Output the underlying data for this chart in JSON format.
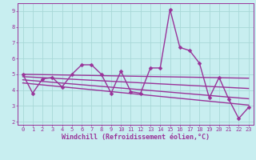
{
  "title": "",
  "xlabel": "Windchill (Refroidissement éolien,°C)",
  "ylabel": "",
  "bg_color": "#c8eef0",
  "grid_color": "#a8d8d8",
  "line_color": "#993399",
  "xlim": [
    -0.5,
    23.5
  ],
  "ylim": [
    1.8,
    9.5
  ],
  "yticks": [
    2,
    3,
    4,
    5,
    6,
    7,
    8,
    9
  ],
  "xticks": [
    0,
    1,
    2,
    3,
    4,
    5,
    6,
    7,
    8,
    9,
    10,
    11,
    12,
    13,
    14,
    15,
    16,
    17,
    18,
    19,
    20,
    21,
    22,
    23
  ],
  "main_x": [
    0,
    1,
    2,
    3,
    4,
    5,
    6,
    7,
    8,
    9,
    10,
    11,
    12,
    13,
    14,
    15,
    16,
    17,
    18,
    19,
    20,
    21,
    22,
    23
  ],
  "main_y": [
    5.0,
    3.8,
    4.7,
    4.8,
    4.2,
    5.0,
    5.6,
    5.6,
    5.0,
    3.8,
    5.2,
    3.9,
    3.8,
    5.4,
    5.4,
    9.1,
    6.7,
    6.5,
    5.7,
    3.5,
    4.8,
    3.4,
    2.2,
    2.9
  ],
  "trend_lines": [
    {
      "x": [
        0,
        23
      ],
      "y": [
        5.0,
        4.75
      ]
    },
    {
      "x": [
        0,
        23
      ],
      "y": [
        4.85,
        4.1
      ]
    },
    {
      "x": [
        0,
        23
      ],
      "y": [
        4.65,
        3.45
      ]
    },
    {
      "x": [
        0,
        23
      ],
      "y": [
        4.45,
        3.05
      ]
    }
  ],
  "marker": "D",
  "marker_size": 2.5,
  "line_width": 1.0,
  "tick_fontsize": 5.0,
  "label_fontsize": 6.0
}
